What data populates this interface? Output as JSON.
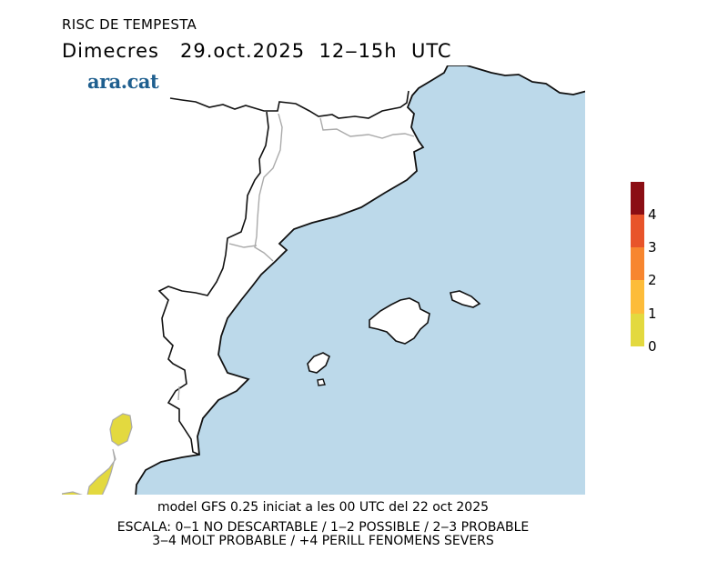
{
  "title": "RISC DE TEMPESTA",
  "subtitle": "Dimecres   29.oct.2025  12‒15h  UTC",
  "logo": "ara.cat",
  "colorbar": {
    "labels": [
      "4",
      "3",
      "2",
      "1",
      "0"
    ],
    "colors": [
      "#8b0e14",
      "#e8542a",
      "#f7862f",
      "#fdbc3a",
      "#e3d93f"
    ]
  },
  "colors": {
    "sea": "#bcd9ea",
    "risk_level_0_1": "#e3d93f"
  },
  "footer": {
    "model": "model GFS 0.25 iniciat a les 00 UTC del 22 oct 2025",
    "scale_line1": "ESCALA: 0‒1 NO DESCARTABLE / 1‒2 POSSIBLE / 2‒3 PROBABLE",
    "scale_line2": "3‒4 MOLT PROBABLE / +4 PERILL FENOMENS SEVERS"
  }
}
